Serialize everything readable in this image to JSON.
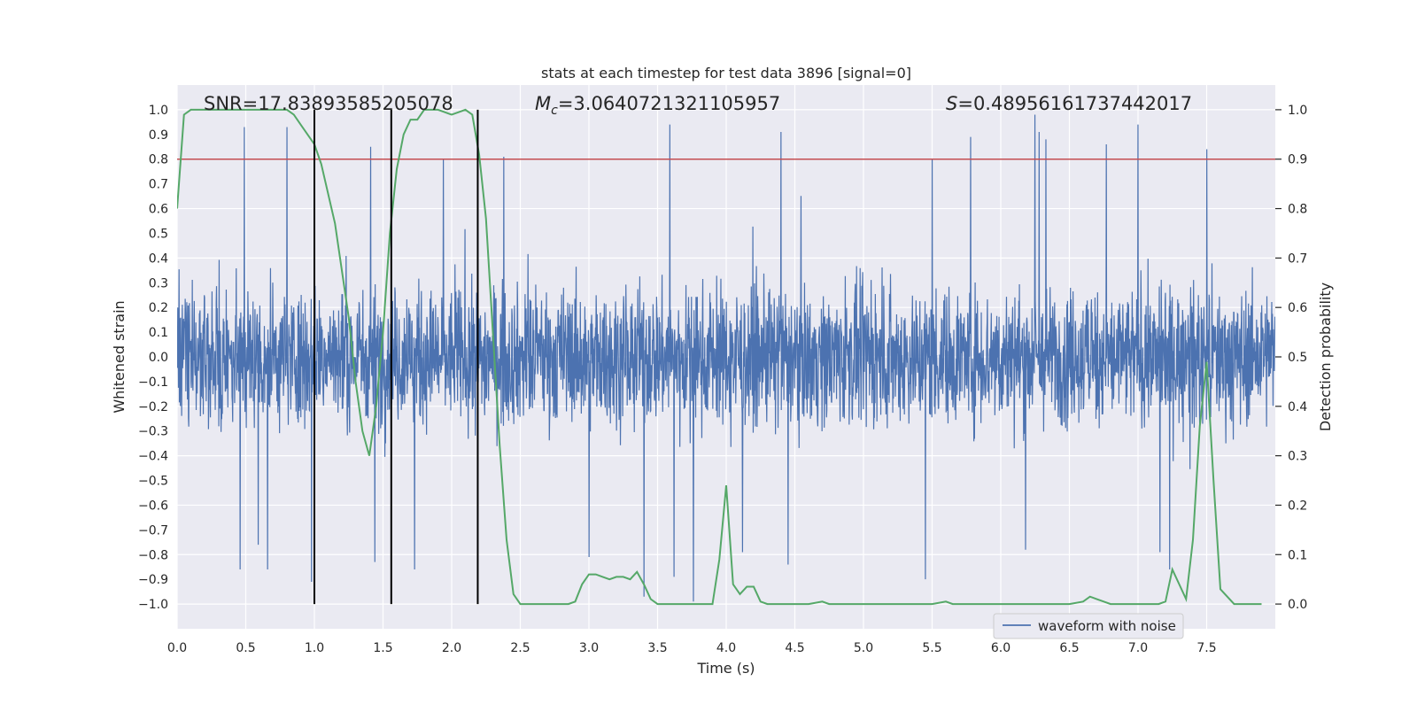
{
  "chart_data": {
    "type": "line",
    "title": "stats at each timestep for test data 3896 [signal=0]",
    "xlabel": "Time (s)",
    "ylabel": "Whitened strain",
    "y2label": "Detection probability",
    "xlim": [
      0.0,
      8.0
    ],
    "ylim": [
      -1.1,
      1.1
    ],
    "y2lim": [
      -0.05,
      1.05
    ],
    "xticks": [
      "0.0",
      "0.5",
      "1.0",
      "1.5",
      "2.0",
      "2.5",
      "3.0",
      "3.5",
      "4.0",
      "4.5",
      "5.0",
      "5.5",
      "6.0",
      "6.5",
      "7.0",
      "7.5"
    ],
    "yticks": [
      "1.0",
      "0.9",
      "0.8",
      "0.7",
      "0.6",
      "0.5",
      "0.4",
      "0.3",
      "0.2",
      "0.1",
      "0.0",
      "−0.1",
      "−0.2",
      "−0.3",
      "−0.4",
      "−0.5",
      "−0.6",
      "−0.7",
      "−0.8",
      "−0.9",
      "−1.0"
    ],
    "y2ticks": [
      "1.0",
      "0.9",
      "0.8",
      "0.7",
      "0.6",
      "0.5",
      "0.4",
      "0.3",
      "0.2",
      "0.1",
      "0.0"
    ],
    "grid": true,
    "legend": {
      "position": "lower-right",
      "entries": [
        "waveform with noise"
      ]
    },
    "annotations": {
      "snr_text": "SNR=17.83893585205078",
      "mc_symbol": "M",
      "mc_sub": "c",
      "mc_value": "=3.0640721321105957",
      "s_symbol": "S",
      "s_value": "=0.48956161737442017"
    },
    "threshold": {
      "y2": 0.9,
      "color": "#c44e52"
    },
    "vlines": [
      1.0,
      1.56,
      2.19
    ],
    "colors": {
      "waveform": "#4c72b0",
      "probability": "#55a868",
      "vline": "#000000",
      "background": "#eaeaf2"
    },
    "probability": {
      "x": [
        0.0,
        0.05,
        0.1,
        0.15,
        0.2,
        0.3,
        0.4,
        0.5,
        0.6,
        0.7,
        0.75,
        0.8,
        0.85,
        0.9,
        1.0,
        1.05,
        1.15,
        1.25,
        1.3,
        1.35,
        1.4,
        1.45,
        1.5,
        1.55,
        1.6,
        1.65,
        1.7,
        1.75,
        1.8,
        1.85,
        1.9,
        1.95,
        2.0,
        2.05,
        2.1,
        2.15,
        2.2,
        2.25,
        2.3,
        2.35,
        2.4,
        2.45,
        2.5,
        2.6,
        2.7,
        2.8,
        2.85,
        2.9,
        2.95,
        3.0,
        3.05,
        3.1,
        3.15,
        3.2,
        3.25,
        3.3,
        3.35,
        3.4,
        3.45,
        3.5,
        3.6,
        3.7,
        3.8,
        3.85,
        3.9,
        3.95,
        4.0,
        4.05,
        4.1,
        4.15,
        4.2,
        4.25,
        4.3,
        4.4,
        4.5,
        4.6,
        4.7,
        4.75,
        4.8,
        4.9,
        5.0,
        5.1,
        5.2,
        5.3,
        5.4,
        5.5,
        5.6,
        5.65,
        5.7,
        5.8,
        5.9,
        6.0,
        6.1,
        6.2,
        6.3,
        6.4,
        6.5,
        6.6,
        6.65,
        6.7,
        6.75,
        6.8,
        6.9,
        7.0,
        7.1,
        7.15,
        7.2,
        7.25,
        7.3,
        7.35,
        7.4,
        7.45,
        7.5,
        7.55,
        7.6,
        7.7,
        7.8,
        7.9
      ],
      "y": [
        0.8,
        0.99,
        1.0,
        1.0,
        1.0,
        1.0,
        1.0,
        1.0,
        1.0,
        1.0,
        1.0,
        1.0,
        0.99,
        0.97,
        0.93,
        0.89,
        0.77,
        0.58,
        0.45,
        0.35,
        0.3,
        0.4,
        0.55,
        0.75,
        0.88,
        0.95,
        0.98,
        0.98,
        1.0,
        1.0,
        1.0,
        0.995,
        0.99,
        0.995,
        1.0,
        0.99,
        0.91,
        0.78,
        0.55,
        0.32,
        0.13,
        0.02,
        0.0,
        0.0,
        0.0,
        0.0,
        0.0,
        0.005,
        0.04,
        0.06,
        0.06,
        0.055,
        0.05,
        0.055,
        0.055,
        0.05,
        0.065,
        0.04,
        0.01,
        0.0,
        0.0,
        0.0,
        0.0,
        0.0,
        0.0,
        0.09,
        0.24,
        0.04,
        0.02,
        0.035,
        0.035,
        0.005,
        0.0,
        0.0,
        0.0,
        0.0,
        0.005,
        0.0,
        0.0,
        0.0,
        0.0,
        0.0,
        0.0,
        0.0,
        0.0,
        0.0,
        0.005,
        0.0,
        0.0,
        0.0,
        0.0,
        0.0,
        0.0,
        0.0,
        0.0,
        0.0,
        0.0,
        0.005,
        0.015,
        0.01,
        0.005,
        0.0,
        0.0,
        0.0,
        0.0,
        0.0,
        0.005,
        0.07,
        0.04,
        0.01,
        0.13,
        0.36,
        0.49,
        0.25,
        0.03,
        0.0,
        0.0,
        0.0
      ]
    },
    "waveform": {
      "name": "waveform with noise",
      "peaks_x": [
        0.49,
        0.8,
        1.41,
        1.56,
        1.94,
        2.38,
        3.59,
        4.4,
        5.5,
        5.78,
        6.25,
        6.28,
        6.33,
        6.77,
        7.0,
        7.5
      ],
      "peaks_y": [
        0.93,
        0.93,
        0.85,
        0.9,
        0.8,
        0.81,
        0.94,
        0.91,
        0.8,
        0.89,
        0.98,
        0.91,
        0.88,
        0.86,
        0.94,
        0.84
      ],
      "troughs_x": [
        0.46,
        0.59,
        0.66,
        0.98,
        1.44,
        1.73,
        3.0,
        3.4,
        3.62,
        3.76,
        4.12,
        4.45,
        5.45,
        6.18,
        7.16,
        7.23
      ],
      "troughs_y": [
        -0.86,
        -0.76,
        -0.86,
        -0.91,
        -0.83,
        -0.86,
        -0.81,
        -0.97,
        -0.89,
        -0.99,
        -0.79,
        -0.84,
        -0.9,
        -0.78,
        -0.79,
        -0.86
      ]
    }
  }
}
